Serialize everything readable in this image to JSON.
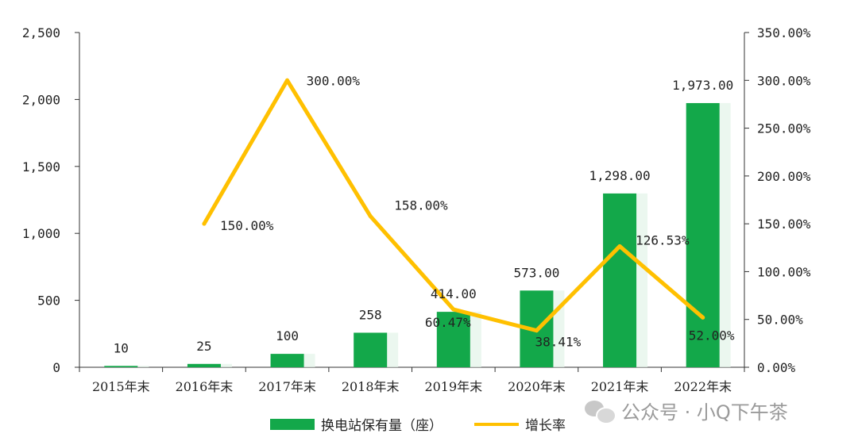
{
  "chart_data": {
    "type": "bar+line",
    "categories": [
      "2015年末",
      "2016年末",
      "2017年末",
      "2018年末",
      "2019年末",
      "2020年末",
      "2021年末",
      "2022年末"
    ],
    "series": [
      {
        "name": "换电站保有量（座）",
        "type": "bar",
        "axis": "left",
        "values": [
          10,
          25,
          100,
          258,
          414,
          573,
          1298,
          1973
        ],
        "labels": [
          "10",
          "25",
          "100",
          "258",
          "414.00",
          "573.00",
          "1,298.00",
          "1,973.00"
        ],
        "color": "#13a84a"
      },
      {
        "name": "增长率",
        "type": "line",
        "axis": "right",
        "values": [
          null,
          150.0,
          300.0,
          158.0,
          60.47,
          38.41,
          126.53,
          52.0
        ],
        "labels": [
          "",
          "150.00%",
          "300.00%",
          "158.00%",
          "60.47%",
          "38.41%",
          "126.53%",
          "52.00%"
        ],
        "color": "#ffc000"
      }
    ],
    "y_left": {
      "min": 0,
      "max": 2500,
      "ticks": [
        "0",
        "500",
        "1,000",
        "1,500",
        "2,000",
        "2,500"
      ]
    },
    "y_right": {
      "min": 0,
      "max": 350,
      "ticks": [
        "0.00%",
        "50.00%",
        "100.00%",
        "150.00%",
        "200.00%",
        "250.00%",
        "300.00%",
        "350.00%"
      ]
    },
    "legend_position": "bottom",
    "grid": false
  },
  "watermark": {
    "text": "公众号 · 小Q下午茶",
    "icon": "wechat-icon"
  }
}
